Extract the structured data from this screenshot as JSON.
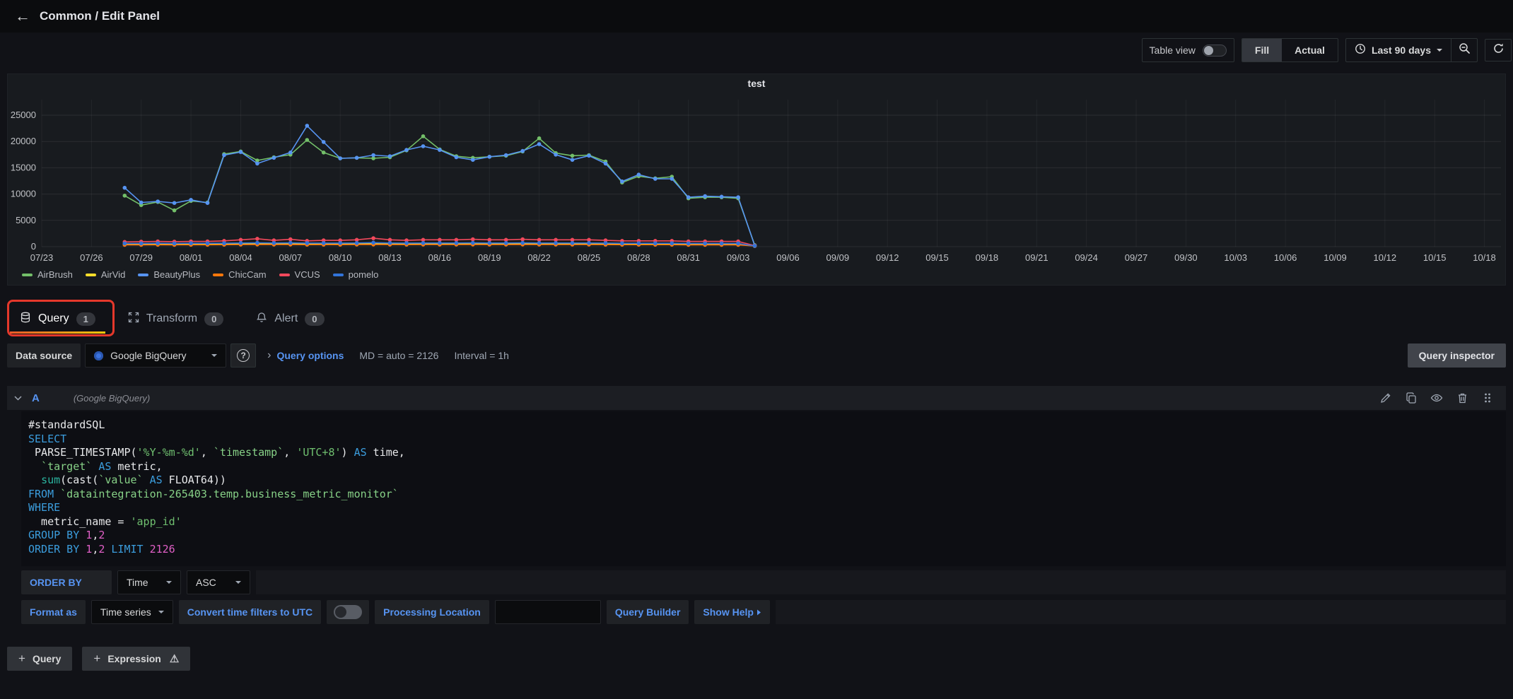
{
  "topbar": {
    "back_icon": "←",
    "title": "Common / Edit Panel"
  },
  "toolbar": {
    "table_view_label": "Table view",
    "fill_label": "Fill",
    "actual_label": "Actual",
    "time_range_label": "Last 90 days"
  },
  "chart_data": {
    "type": "line",
    "title": "test",
    "xlabel": "",
    "ylabel": "",
    "ylim": [
      0,
      25000
    ],
    "ytick_labels": [
      "0",
      "5000",
      "10000",
      "15000",
      "20000",
      "25000"
    ],
    "yticks": [
      0,
      5000,
      10000,
      15000,
      20000,
      25000
    ],
    "grid": true,
    "legend_position": "bottom-left",
    "x_tick_labels": [
      "07/23",
      "07/26",
      "07/29",
      "08/01",
      "08/04",
      "08/07",
      "08/10",
      "08/13",
      "08/16",
      "08/19",
      "08/22",
      "08/25",
      "08/28",
      "08/31",
      "09/03",
      "09/06",
      "09/09",
      "09/12",
      "09/15",
      "09/18",
      "09/21",
      "09/24",
      "09/27",
      "09/30",
      "10/03",
      "10/06",
      "10/09",
      "10/12",
      "10/15",
      "10/18"
    ],
    "tick_interval_days": 3,
    "x_total_days": 88,
    "series_start_day": 5,
    "series_dates_note": "daily points from 07/28 to 09/04",
    "series": [
      {
        "name": "AirBrush",
        "color": "#73bf69",
        "values": [
          9700,
          7900,
          8500,
          6900,
          8700,
          8400,
          17600,
          18100,
          16400,
          17000,
          17500,
          20300,
          17900,
          16800,
          16900,
          16800,
          17000,
          18300,
          21000,
          18500,
          17200,
          16900,
          17100,
          17300,
          18100,
          20600,
          17800,
          17300,
          17400,
          16200,
          12200,
          13400,
          13000,
          13300,
          9200,
          9400,
          9400,
          9200,
          300
        ]
      },
      {
        "name": "AirVid",
        "color": "#fade2a",
        "values": [
          480,
          480,
          500,
          480,
          500,
          500,
          520,
          540,
          560,
          540,
          560,
          540,
          540,
          520,
          540,
          560,
          540,
          540,
          560,
          560,
          540,
          540,
          540,
          540,
          560,
          560,
          540,
          540,
          540,
          520,
          500,
          500,
          500,
          500,
          480,
          480,
          480,
          480,
          150
        ]
      },
      {
        "name": "BeautyPlus",
        "color": "#5794f2",
        "values": [
          11200,
          8400,
          8600,
          8300,
          8900,
          8300,
          17400,
          18000,
          15800,
          16900,
          17900,
          23000,
          19900,
          16800,
          16900,
          17400,
          17200,
          18400,
          19100,
          18400,
          17000,
          16500,
          17100,
          17400,
          18200,
          19500,
          17500,
          16500,
          17300,
          15800,
          12400,
          13700,
          12900,
          12900,
          9400,
          9600,
          9500,
          9400,
          200
        ]
      },
      {
        "name": "ChicCam",
        "color": "#ff780a",
        "values": [
          350,
          350,
          360,
          350,
          360,
          360,
          380,
          400,
          420,
          400,
          420,
          380,
          390,
          390,
          400,
          420,
          400,
          390,
          400,
          400,
          400,
          410,
          400,
          400,
          410,
          400,
          400,
          400,
          400,
          390,
          370,
          370,
          370,
          370,
          350,
          350,
          350,
          350,
          120
        ]
      },
      {
        "name": "VCUS",
        "color": "#f2495c",
        "values": [
          900,
          950,
          1000,
          950,
          1000,
          1000,
          1100,
          1300,
          1500,
          1200,
          1400,
          1100,
          1200,
          1200,
          1300,
          1600,
          1300,
          1200,
          1300,
          1300,
          1300,
          1400,
          1300,
          1300,
          1400,
          1300,
          1300,
          1300,
          1300,
          1200,
          1100,
          1100,
          1100,
          1100,
          1000,
          1000,
          1000,
          1000,
          200
        ]
      },
      {
        "name": "pomelo",
        "color": "#3274d9",
        "values": [
          620,
          620,
          640,
          620,
          640,
          640,
          660,
          700,
          740,
          700,
          720,
          680,
          690,
          690,
          700,
          760,
          700,
          690,
          700,
          700,
          700,
          720,
          700,
          700,
          720,
          700,
          700,
          700,
          700,
          680,
          650,
          650,
          650,
          650,
          620,
          620,
          620,
          620,
          150
        ]
      }
    ]
  },
  "tabs": [
    {
      "label": "Query",
      "count": "1",
      "active": true
    },
    {
      "label": "Transform",
      "count": "0",
      "active": false
    },
    {
      "label": "Alert",
      "count": "0",
      "active": false
    }
  ],
  "datasource_row": {
    "label": "Data source",
    "selected": "Google BigQuery",
    "help_icon": "?",
    "chevron": "›",
    "query_options_label": "Query options",
    "md_text": "MD = auto = 2126",
    "interval_text": "Interval = 1h",
    "query_inspector_label": "Query inspector"
  },
  "query_editor": {
    "ref_id": "A",
    "datasource_name": "(Google BigQuery)",
    "code_lines": [
      [
        [
          "plain",
          "#standardSQL"
        ]
      ],
      [
        [
          "kw",
          "SELECT"
        ]
      ],
      [
        [
          "plain",
          " PARSE_TIMESTAMP("
        ],
        [
          "str",
          "'%Y-%m-%d'"
        ],
        [
          "plain",
          ", "
        ],
        [
          "ident",
          "`timestamp`"
        ],
        [
          "plain",
          ", "
        ],
        [
          "str",
          "'UTC+8'"
        ],
        [
          "plain",
          ") "
        ],
        [
          "kw",
          "AS"
        ],
        [
          "plain",
          " time,"
        ]
      ],
      [
        [
          "plain",
          "  "
        ],
        [
          "ident",
          "`target`"
        ],
        [
          "plain",
          " "
        ],
        [
          "kw",
          "AS"
        ],
        [
          "plain",
          " metric,"
        ]
      ],
      [
        [
          "plain",
          "  "
        ],
        [
          "fn",
          "sum"
        ],
        [
          "plain",
          "(cast("
        ],
        [
          "ident",
          "`value`"
        ],
        [
          "plain",
          " "
        ],
        [
          "kw",
          "AS"
        ],
        [
          "plain",
          " FLOAT64))"
        ]
      ],
      [
        [
          "kw",
          "FROM"
        ],
        [
          "plain",
          " "
        ],
        [
          "ident",
          "`dataintegration-265403.temp.business_metric_monitor`"
        ]
      ],
      [
        [
          "kw",
          "WHERE"
        ]
      ],
      [
        [
          "plain",
          "  metric_name = "
        ],
        [
          "str",
          "'app_id'"
        ]
      ],
      [
        [
          "kw",
          "GROUP BY"
        ],
        [
          "plain",
          " "
        ],
        [
          "num",
          "1"
        ],
        [
          "plain",
          ","
        ],
        [
          "num",
          "2"
        ]
      ],
      [
        [
          "kw",
          "ORDER BY"
        ],
        [
          "plain",
          " "
        ],
        [
          "num",
          "1"
        ],
        [
          "plain",
          ","
        ],
        [
          "num",
          "2"
        ],
        [
          "plain",
          " "
        ],
        [
          "kw",
          "LIMIT"
        ],
        [
          "plain",
          " "
        ],
        [
          "num",
          "2126"
        ]
      ]
    ],
    "order_by": {
      "label": "ORDER BY",
      "field": "Time",
      "direction": "ASC"
    },
    "format_row": {
      "format_as_label": "Format as",
      "format_value": "Time series",
      "utc_label": "Convert time filters to UTC",
      "processing_location_label": "Processing Location",
      "processing_location_value": "",
      "query_builder_label": "Query Builder",
      "show_help_label": "Show Help"
    }
  },
  "footer": {
    "plus_icon": "+",
    "add_query_label": "Query",
    "add_expression_label": "Expression",
    "warning_icon": "⚠"
  }
}
